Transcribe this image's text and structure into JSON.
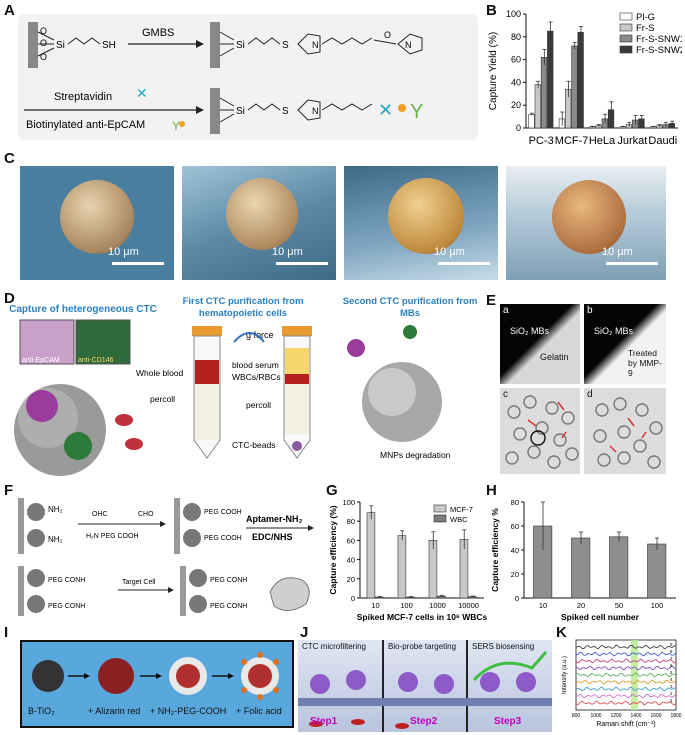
{
  "panel_labels": {
    "A": "A",
    "B": "B",
    "C": "C",
    "D": "D",
    "E": "E",
    "F": "F",
    "G": "G",
    "H": "H",
    "I": "I",
    "J": "J",
    "K": "K"
  },
  "panel_a": {
    "reagent1": "GMBS",
    "reagent2": "Streptavidin",
    "reagent3": "Biotinylated anti-EpCAM",
    "atom_si": "Si",
    "atom_o": "O",
    "atom_s": "S",
    "atom_n": "N",
    "group_sh": "SH"
  },
  "panel_c": {
    "scale": "10 μm"
  },
  "panel_d": {
    "title_left": "Capture of heterogeneous CTC",
    "title_mid": "First CTC purification from hematopoietic cells",
    "title_right": "Second CTC purification from MBs",
    "g_force": "g force",
    "whole_blood": "Whole blood",
    "percoll_left": "percoll",
    "blood_serum": "blood serum",
    "wbcs_rbcs": "WBCs/RBCs",
    "percoll_right": "percoll",
    "ctc_beads": "CTC-beads",
    "mnps": "MNPs degradation",
    "inset1": "anti-EpCAM",
    "inset2": "anti-CD146"
  },
  "panel_e": {
    "sub_a": "a",
    "sub_b": "b",
    "sub_c": "c",
    "sub_d": "d",
    "sio2_a": "SiO₂ MBs",
    "sio2_b": "SiO₂ MBs",
    "gelatin": "Gelatin",
    "treated": "Treated by MMP-9"
  },
  "panel_f": {
    "cho": "OHC",
    "cho2": "CHO",
    "amine_reagent": "H₂N PEG COOH",
    "nh2": "NH₂",
    "peg_cooh": "PEG COOH",
    "peg_conh": "PEG CONH",
    "aptamer": "Aptamer-NH₂",
    "edc": "EDC/NHS",
    "target": "Target Cell"
  },
  "panel_i": {
    "step0": "B-TiO₂",
    "step1": "+ Alizarin red",
    "step2": "+ NH₂-PEG-COOH",
    "step3": "+ Folic acid"
  },
  "panel_j": {
    "head1": "CTC microfiltering",
    "head2": "Bio-probe targeting",
    "head3": "SERS biosensing",
    "step1": "Step1",
    "step2": "Step2",
    "step3": "Step3"
  },
  "chart_data": [
    {
      "id": "B",
      "type": "bar",
      "categories": [
        "PC-3",
        "MCF-7",
        "HeLa",
        "Jurkat",
        "Daudi"
      ],
      "series": [
        {
          "name": "Pl-G",
          "color": "#ffffff",
          "values": [
            12,
            8,
            1,
            1,
            1
          ],
          "errors": [
            1,
            6,
            0.5,
            0.5,
            0.5
          ]
        },
        {
          "name": "Fr-S",
          "color": "#c8c8c8",
          "values": [
            38,
            34,
            2,
            3,
            2
          ],
          "errors": [
            3,
            7,
            1,
            2,
            1
          ]
        },
        {
          "name": "Fr-S-SNW1",
          "color": "#8a8a8a",
          "values": [
            62,
            72,
            8,
            7,
            3
          ],
          "errors": [
            7,
            3,
            4,
            4,
            2
          ]
        },
        {
          "name": "Fr-S-SNW2",
          "color": "#3a3a3a",
          "values": [
            85,
            84,
            16,
            8,
            4
          ],
          "errors": [
            8,
            5,
            7,
            3,
            2
          ]
        }
      ],
      "ylabel": "Capture Yield (%)",
      "ylim": [
        0,
        100
      ],
      "yticks": [
        0,
        20,
        40,
        60,
        80,
        100
      ],
      "legend": "top-right"
    },
    {
      "id": "G",
      "type": "bar",
      "categories": [
        "10",
        "100",
        "1000",
        "10000"
      ],
      "series": [
        {
          "name": "MCF-7",
          "color": "#c8c8c8",
          "values": [
            89,
            65,
            60,
            61
          ],
          "errors": [
            7,
            5,
            9,
            10
          ]
        },
        {
          "name": "WBC",
          "color": "#7a7a7a",
          "values": [
            1,
            1,
            2,
            1.5
          ],
          "errors": [
            0.5,
            0.5,
            0.8,
            0.5
          ]
        }
      ],
      "xlabel": "Spiked MCF-7 cells in 10⁶ WBCs",
      "ylabel": "Capture efficiency (%)",
      "ylim": [
        0,
        100
      ],
      "yticks": [
        0,
        20,
        40,
        60,
        80,
        100
      ],
      "legend": "top-right"
    },
    {
      "id": "H",
      "type": "bar",
      "categories": [
        "10",
        "20",
        "50",
        "100"
      ],
      "series": [
        {
          "name": "",
          "color": "#8e8e8e",
          "values": [
            60,
            50,
            51,
            45
          ],
          "errors": [
            20,
            5,
            4,
            5
          ]
        }
      ],
      "xlabel": "Spiked cell number",
      "ylabel": "Capture efficiency %",
      "ylim": [
        0,
        80
      ],
      "yticks": [
        0,
        20,
        40,
        60,
        80
      ]
    },
    {
      "id": "K",
      "type": "line",
      "series_count": 9,
      "series_labels": [
        "1",
        "2",
        "3",
        "4",
        "5",
        "6",
        "7",
        "8",
        "9"
      ],
      "series_colors": [
        "#e05050",
        "#d070d0",
        "#40a0d0",
        "#e0a030",
        "#60b060",
        "#8050c0",
        "#d04080",
        "#4060d0",
        "#404040"
      ],
      "xlabel": "Raman shift (cm⁻¹)",
      "ylabel": "Intensity (a.u.)",
      "xticks": [
        "800",
        "1000",
        "1200",
        "1400",
        "1600",
        "1800"
      ],
      "highlight_color": "#b8e890"
    }
  ]
}
